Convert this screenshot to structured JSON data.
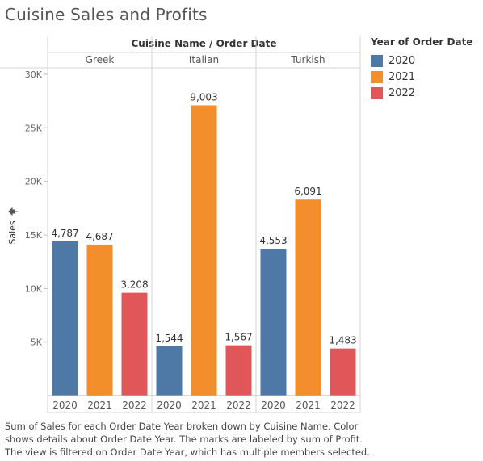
{
  "title": "Cuisine Sales and Profits",
  "legend": {
    "title": "Year of Order Date",
    "items": [
      {
        "label": "2020",
        "color": "#4e79a7"
      },
      {
        "label": "2021",
        "color": "#f28e2b"
      },
      {
        "label": "2022",
        "color": "#e15759"
      }
    ]
  },
  "caption": [
    "Sum of Sales for each Order Date Year broken down by Cuisine Name.  Color",
    "shows details about Order Date Year.  The marks are labeled by sum of Profit.",
    "The view is filtered on Order Date Year, which has multiple members selected."
  ],
  "chart_data": {
    "type": "bar",
    "header": "Cuisine Name / Order Date",
    "ylabel": "Sales",
    "ylim": [
      0,
      30000
    ],
    "yticks": [
      5000,
      10000,
      15000,
      20000,
      25000,
      30000
    ],
    "ytick_labels": [
      "5K",
      "10K",
      "15K",
      "20K",
      "25K",
      "30K"
    ],
    "groups": [
      {
        "name": "Greek",
        "bars": [
          {
            "year": "2020",
            "sales": 14400,
            "profit_label": "4,787"
          },
          {
            "year": "2021",
            "sales": 14100,
            "profit_label": "4,687"
          },
          {
            "year": "2022",
            "sales": 9600,
            "profit_label": "3,208"
          }
        ]
      },
      {
        "name": "Italian",
        "bars": [
          {
            "year": "2020",
            "sales": 4600,
            "profit_label": "1,544"
          },
          {
            "year": "2021",
            "sales": 27100,
            "profit_label": "9,003"
          },
          {
            "year": "2022",
            "sales": 4700,
            "profit_label": "1,567"
          }
        ]
      },
      {
        "name": "Turkish",
        "bars": [
          {
            "year": "2020",
            "sales": 13700,
            "profit_label": "4,553"
          },
          {
            "year": "2021",
            "sales": 18300,
            "profit_label": "6,091"
          },
          {
            "year": "2022",
            "sales": 4400,
            "profit_label": "1,483"
          }
        ]
      }
    ]
  }
}
